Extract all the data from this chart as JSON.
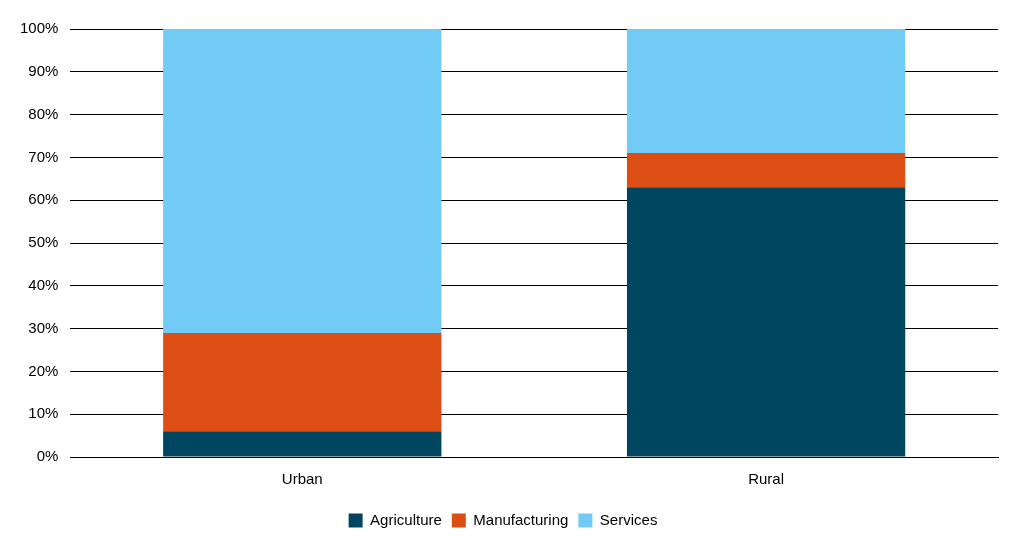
{
  "chart_data": {
    "type": "bar",
    "stacked": true,
    "categories": [
      "Urban",
      "Rural"
    ],
    "series": [
      {
        "name": "Agriculture",
        "color": "#004660",
        "values": [
          6,
          63
        ]
      },
      {
        "name": "Manufacturing",
        "color": "#dc4e14",
        "values": [
          23,
          8
        ]
      },
      {
        "name": "Services",
        "color": "#72cbf4",
        "values": [
          71,
          29
        ]
      }
    ],
    "ylim": [
      0,
      100
    ],
    "yticks": [
      {
        "value": 0,
        "label": "0%"
      },
      {
        "value": 10,
        "label": "10%"
      },
      {
        "value": 20,
        "label": "20%"
      },
      {
        "value": 30,
        "label": "30%"
      },
      {
        "value": 40,
        "label": "40%"
      },
      {
        "value": 50,
        "label": "50%"
      },
      {
        "value": 60,
        "label": "60%"
      },
      {
        "value": 70,
        "label": "70%"
      },
      {
        "value": 80,
        "label": "80%"
      },
      {
        "value": 90,
        "label": "90%"
      },
      {
        "value": 100,
        "label": "100%"
      }
    ],
    "grid": "y",
    "legend": "bottom"
  }
}
